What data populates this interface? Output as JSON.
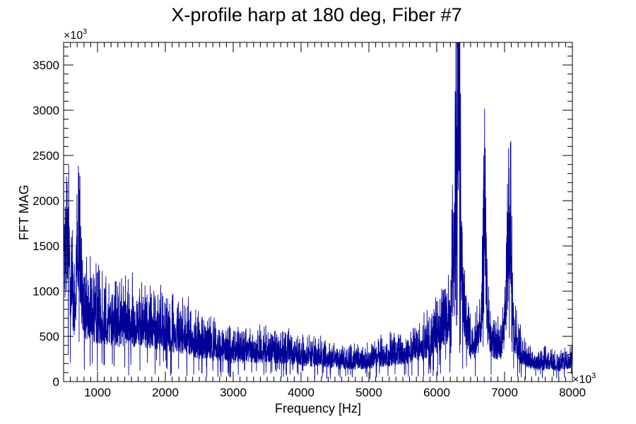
{
  "chart_data": {
    "type": "line",
    "title": "X-profile harp at 180 deg, Fiber #7",
    "xlabel": "Frequency [Hz]",
    "ylabel": "FFT MAG",
    "x_multiplier_label": "×10",
    "x_multiplier_exp": "3",
    "y_multiplier_label": "×10",
    "y_multiplier_exp": "3",
    "xlim": [
      500,
      8000
    ],
    "ylim": [
      0,
      3750
    ],
    "x_ticks": [
      "1000",
      "2000",
      "3000",
      "4000",
      "5000",
      "6000",
      "7000",
      "8000"
    ],
    "y_ticks": [
      "0",
      "500",
      "1000",
      "1500",
      "2000",
      "2500",
      "3000",
      "3500"
    ],
    "grid": false,
    "line_color": "#000099",
    "envelope": [
      [
        500,
        1700
      ],
      [
        540,
        1600
      ],
      [
        580,
        1450
      ],
      [
        620,
        1150
      ],
      [
        660,
        850
      ],
      [
        700,
        1350
      ],
      [
        730,
        1900
      ],
      [
        760,
        1100
      ],
      [
        800,
        850
      ],
      [
        900,
        820
      ],
      [
        1000,
        760
      ],
      [
        1100,
        740
      ],
      [
        1200,
        720
      ],
      [
        1300,
        700
      ],
      [
        1400,
        690
      ],
      [
        1500,
        690
      ],
      [
        1600,
        680
      ],
      [
        1700,
        670
      ],
      [
        1800,
        680
      ],
      [
        1900,
        640
      ],
      [
        2000,
        620
      ],
      [
        2100,
        590
      ],
      [
        2200,
        570
      ],
      [
        2300,
        550
      ],
      [
        2400,
        500
      ],
      [
        2500,
        460
      ],
      [
        2600,
        440
      ],
      [
        2700,
        420
      ],
      [
        2800,
        400
      ],
      [
        2900,
        380
      ],
      [
        3000,
        370
      ],
      [
        3200,
        360
      ],
      [
        3400,
        370
      ],
      [
        3500,
        380
      ],
      [
        3600,
        370
      ],
      [
        3800,
        340
      ],
      [
        4000,
        320
      ],
      [
        4200,
        300
      ],
      [
        4400,
        280
      ],
      [
        4600,
        250
      ],
      [
        4800,
        240
      ],
      [
        5000,
        250
      ],
      [
        5200,
        300
      ],
      [
        5400,
        320
      ],
      [
        5600,
        360
      ],
      [
        5800,
        420
      ],
      [
        5950,
        520
      ],
      [
        6050,
        600
      ],
      [
        6150,
        700
      ],
      [
        6200,
        900
      ],
      [
        6250,
        1400
      ],
      [
        6280,
        2400
      ],
      [
        6310,
        3400
      ],
      [
        6330,
        3250
      ],
      [
        6350,
        2000
      ],
      [
        6380,
        1100
      ],
      [
        6420,
        700
      ],
      [
        6500,
        450
      ],
      [
        6550,
        450
      ],
      [
        6600,
        520
      ],
      [
        6650,
        700
      ],
      [
        6680,
        1300
      ],
      [
        6700,
        2600
      ],
      [
        6720,
        1400
      ],
      [
        6750,
        700
      ],
      [
        6800,
        500
      ],
      [
        6900,
        420
      ],
      [
        6950,
        450
      ],
      [
        7000,
        700
      ],
      [
        7040,
        1300
      ],
      [
        7070,
        2000
      ],
      [
        7090,
        1800
      ],
      [
        7110,
        1000
      ],
      [
        7150,
        550
      ],
      [
        7200,
        400
      ],
      [
        7300,
        300
      ],
      [
        7400,
        240
      ],
      [
        7500,
        220
      ],
      [
        7600,
        230
      ],
      [
        7700,
        220
      ],
      [
        7800,
        210
      ],
      [
        7900,
        250
      ],
      [
        8000,
        250
      ]
    ]
  }
}
